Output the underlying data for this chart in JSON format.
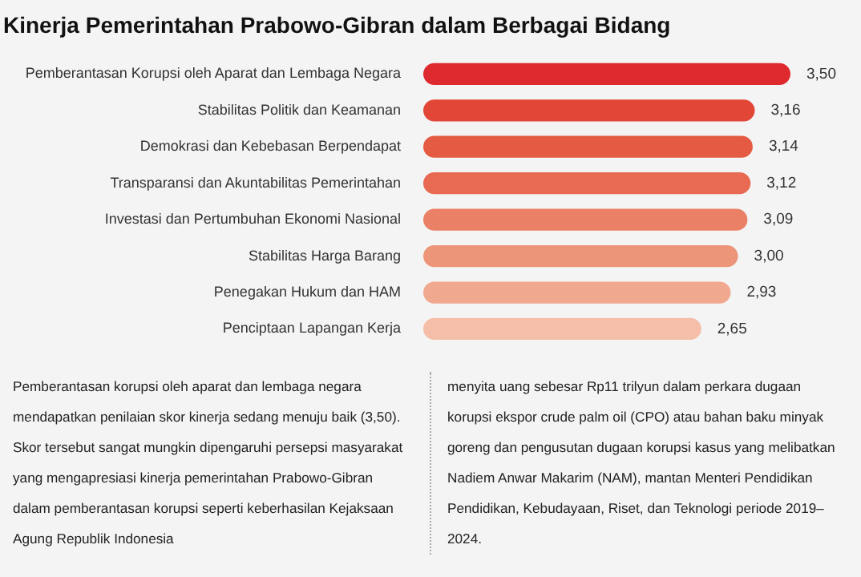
{
  "chart_data": {
    "type": "bar",
    "orientation": "horizontal",
    "title": "Kinerja Pemerintahan Prabowo-Gibran dalam Berbagai Bidang",
    "categories": [
      "Pemberantasan Korupsi oleh Aparat dan Lembaga Negara",
      "Stabilitas Politik dan Keamanan",
      "Demokrasi dan Kebebasan Berpendapat",
      "Transparansi dan Akuntabilitas Pemerintahan",
      "Investasi dan Pertumbuhan Ekonomi Nasional",
      "Stabilitas Harga Barang",
      "Penegakan Hukum dan HAM",
      "Penciptaan Lapangan Kerja"
    ],
    "values": [
      3.5,
      3.16,
      3.14,
      3.12,
      3.09,
      3.0,
      2.93,
      2.65
    ],
    "value_labels": [
      "3,50",
      "3,16",
      "3,14",
      "3,12",
      "3,09",
      "3,00",
      "2,93",
      "2,65"
    ],
    "colors": [
      "#de2a2e",
      "#e24636",
      "#e55a42",
      "#e86a52",
      "#ea8065",
      "#ed9578",
      "#f0a88e",
      "#f5bea8"
    ],
    "xlim": [
      0,
      3.5
    ],
    "tick_labels": "y",
    "grid": false,
    "legend": false,
    "annotations": [
      "Pemberantasan korupsi oleh aparat dan lembaga negara mendapatkan penilaian skor kinerja sedang menuju baik (3,50). Skor tersebut sangat mungkin dipengaruhi persepsi masyarakat yang mengapresiasi kinerja pemerintahan Prabowo-Gibran dalam pemberantasan korupsi seperti keberhasilan Kejaksaan Agung Republik Indonesia",
      "menyita uang sebesar Rp11 trilyun dalam perkara dugaan korupsi ekspor crude palm oil (CPO) atau bahan baku minyak goreng dan pengusutan dugaan korupsi kasus yang melibatkan Nadiem Anwar Makarim (NAM), mantan Menteri Pendidikan Pendidikan, Kebudayaan, Riset, dan Teknologi periode 2019–2024."
    ]
  }
}
